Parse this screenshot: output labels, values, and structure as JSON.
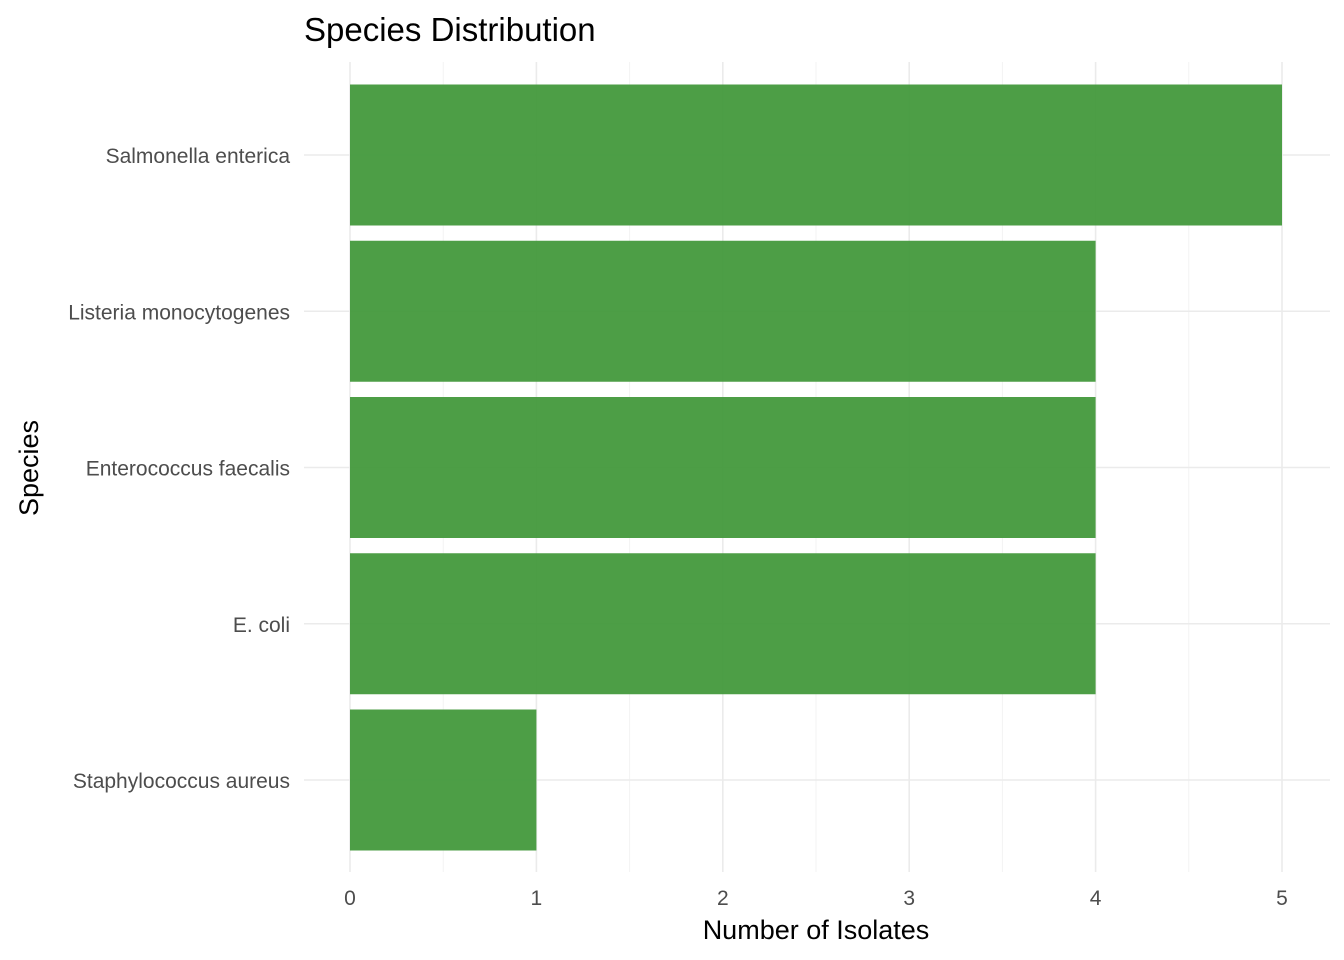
{
  "chart_data": {
    "type": "bar",
    "orientation": "horizontal",
    "title": "Species Distribution",
    "xlabel": "Number of Isolates",
    "ylabel": "Species",
    "categories": [
      "Salmonella enterica",
      "Listeria monocytogenes",
      "Enterococcus faecalis",
      "E. coli",
      "Staphylococcus aureus"
    ],
    "values": [
      5,
      4,
      4,
      4,
      1
    ],
    "x_ticks": [
      "0",
      "1",
      "2",
      "3",
      "4",
      "5"
    ],
    "xlim": [
      0,
      5
    ],
    "grid": true,
    "legend": "none",
    "colors": {
      "bar": "#43993c",
      "grid_major": "#ebebeb",
      "grid_minor": "#f2f2f2",
      "tick_text": "#4d4d4d",
      "title_text": "#000000"
    }
  }
}
